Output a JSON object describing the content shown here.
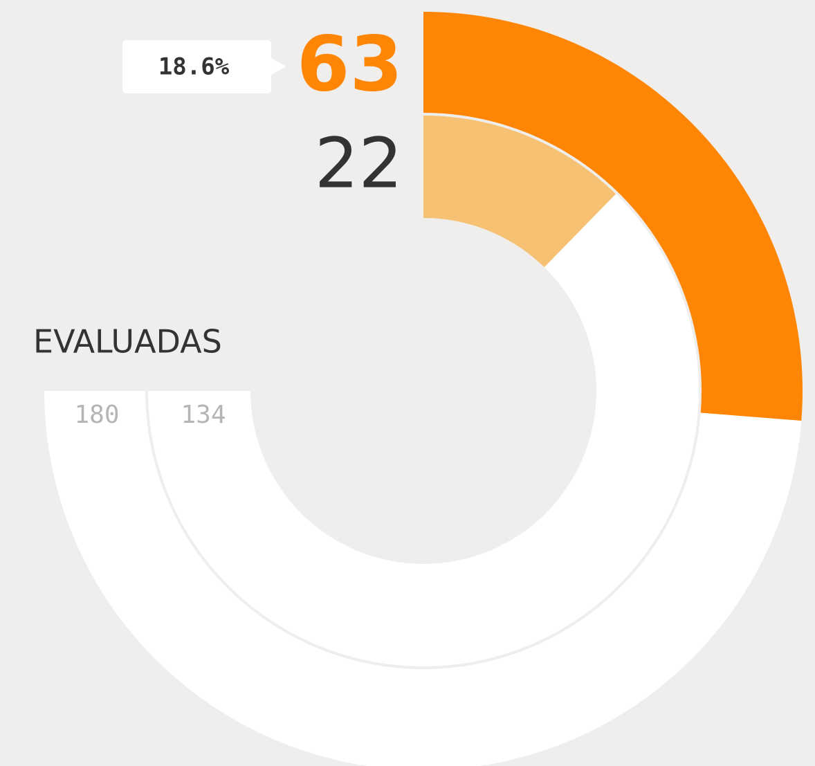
{
  "chart_data": {
    "type": "radial_bar",
    "title": "EVALUADAS",
    "tooltip": "18.6%",
    "sweep": 270,
    "series": [
      {
        "color": "#ff8605",
        "values": [
          63
        ],
        "totals": [
          180
        ]
      },
      {
        "color": "#f6c172",
        "values": [
          22
        ],
        "totals": [
          134
        ]
      }
    ]
  }
}
